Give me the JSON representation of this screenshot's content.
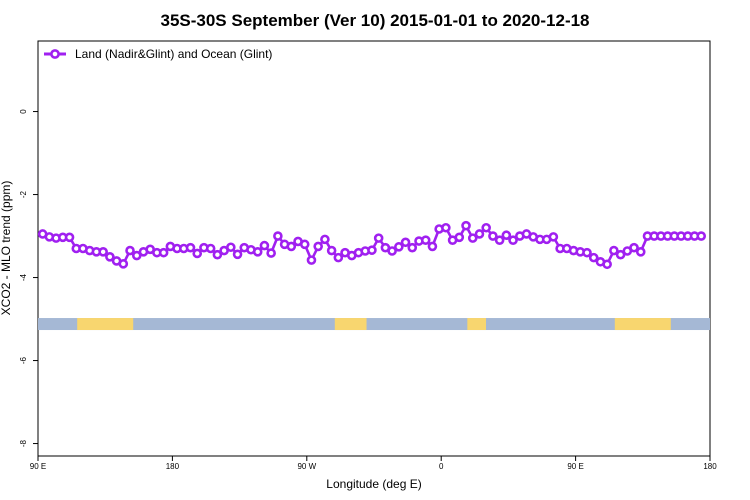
{
  "chart_data": {
    "type": "line",
    "title": "35S-30S September (Ver 10)   2015-01-01 to 2020-12-18",
    "xlabel": "Longitude (deg E)",
    "ylabel": "XCO2 - MLO trend (ppm)",
    "xlim": [
      90,
      450
    ],
    "ylim": [
      -8.3,
      1.7
    ],
    "x_ticks": [
      {
        "value": 90,
        "label": "90 E"
      },
      {
        "value": 162,
        "label": "180"
      },
      {
        "value": 234,
        "label": "90 W"
      },
      {
        "value": 306,
        "label": "0"
      },
      {
        "value": 378,
        "label": "90 E"
      },
      {
        "value": 450,
        "label": "180"
      }
    ],
    "y_ticks": [
      {
        "value": 0,
        "label": "0"
      },
      {
        "value": -2,
        "label": "-2"
      },
      {
        "value": -4,
        "label": "-4"
      },
      {
        "value": -6,
        "label": "-6"
      },
      {
        "value": -8,
        "label": "-8"
      }
    ],
    "grid": false,
    "legend": {
      "placement": "top-left"
    },
    "series": [
      {
        "name": "Land (Nadir&Glint) and Ocean (Glint)",
        "color": "#a020f0",
        "x": [
          92.5,
          96.1,
          99.7,
          103.3,
          106.9,
          110.5,
          114.1,
          117.7,
          121.3,
          124.9,
          128.5,
          132.1,
          135.7,
          139.3,
          142.9,
          146.5,
          150.1,
          153.7,
          157.3,
          160.9,
          164.5,
          168.1,
          171.7,
          175.3,
          178.9,
          182.5,
          186.1,
          189.7,
          193.3,
          196.9,
          200.5,
          204.1,
          207.7,
          211.3,
          214.9,
          218.5,
          222.1,
          225.7,
          229.3,
          232.9,
          236.5,
          240.1,
          243.7,
          247.3,
          250.9,
          254.5,
          258.1,
          261.7,
          265.3,
          268.9,
          272.5,
          276.1,
          279.7,
          283.3,
          286.9,
          290.5,
          294.1,
          297.7,
          301.3,
          304.9,
          308.5,
          312.1,
          315.7,
          319.3,
          322.9,
          326.5,
          330.1,
          333.7,
          337.3,
          340.9,
          344.5,
          348.1,
          351.7,
          355.3,
          358.9,
          362.5,
          366.1,
          369.7,
          373.3,
          376.9,
          380.5,
          384.1,
          387.7,
          391.3,
          394.9,
          398.5,
          402.1,
          405.7,
          409.3,
          412.9,
          416.5,
          420.1,
          423.7,
          427.3,
          430.9,
          434.5,
          438.1,
          441.7,
          445.3,
          448.9
        ],
        "values": [
          -2.95,
          -3.02,
          -3.05,
          -3.03,
          -3.03,
          -3.3,
          -3.3,
          -3.35,
          -3.38,
          -3.38,
          -3.5,
          -3.6,
          -3.67,
          -3.35,
          -3.47,
          -3.38,
          -3.32,
          -3.4,
          -3.4,
          -3.25,
          -3.3,
          -3.3,
          -3.28,
          -3.42,
          -3.28,
          -3.3,
          -3.45,
          -3.35,
          -3.27,
          -3.44,
          -3.28,
          -3.33,
          -3.38,
          -3.23,
          -3.41,
          -3.0,
          -3.2,
          -3.25,
          -3.13,
          -3.2,
          -3.58,
          -3.25,
          -3.08,
          -3.35,
          -3.52,
          -3.4,
          -3.47,
          -3.4,
          -3.36,
          -3.34,
          -3.05,
          -3.28,
          -3.36,
          -3.26,
          -3.15,
          -3.28,
          -3.12,
          -3.1,
          -3.25,
          -2.83,
          -2.8,
          -3.1,
          -3.03,
          -2.75,
          -3.05,
          -2.95,
          -2.8,
          -3.0,
          -3.1,
          -2.98,
          -3.1,
          -3.0,
          -2.95,
          -3.02,
          -3.08,
          -3.08,
          -3.02,
          -3.3,
          -3.3,
          -3.35,
          -3.38,
          -3.4,
          -3.52,
          -3.62,
          -3.68,
          -3.35,
          -3.45,
          -3.36,
          -3.28,
          -3.38,
          -3.0,
          -3.0,
          -3.0,
          -3.0,
          -3.0,
          -3.0,
          -3.0,
          -3.0,
          -3.0,
          -3.0
        ]
      }
    ],
    "land_ocean_strip": {
      "y": -5.12,
      "ocean_color": "#a5b8d5",
      "land_color": "#f8d66f",
      "land_spans": [
        [
          111,
          141
        ],
        [
          249,
          266
        ],
        [
          320,
          330
        ],
        [
          399,
          429
        ]
      ]
    }
  }
}
